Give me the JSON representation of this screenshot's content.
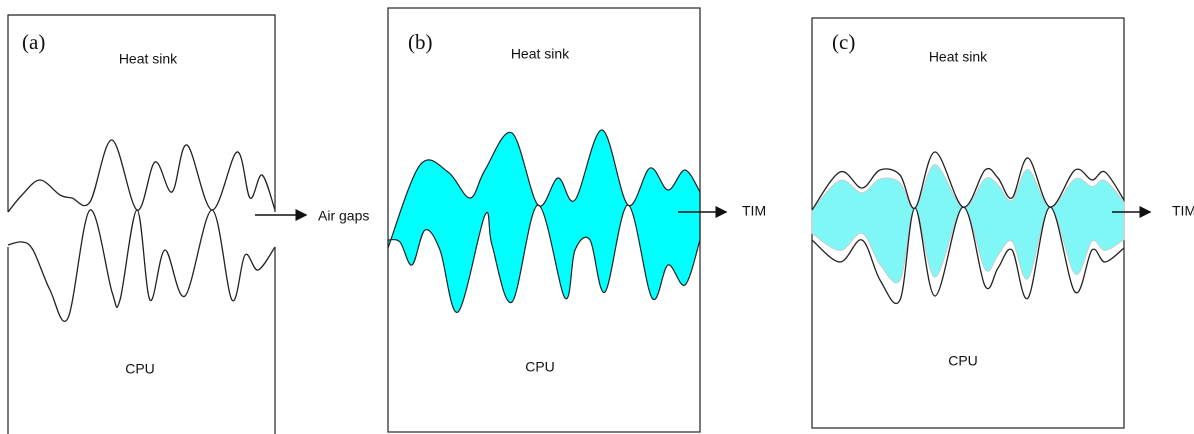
{
  "panels": [
    {
      "label": "(a)",
      "top": "Heat sink",
      "bottom": "CPU",
      "callout": "Air gaps"
    },
    {
      "label": "(b)",
      "top": "Heat sink",
      "bottom": "CPU",
      "callout": "TIM"
    },
    {
      "label": "(c)",
      "top": "Heat sink",
      "bottom": "CPU",
      "callout": "TIM"
    }
  ]
}
